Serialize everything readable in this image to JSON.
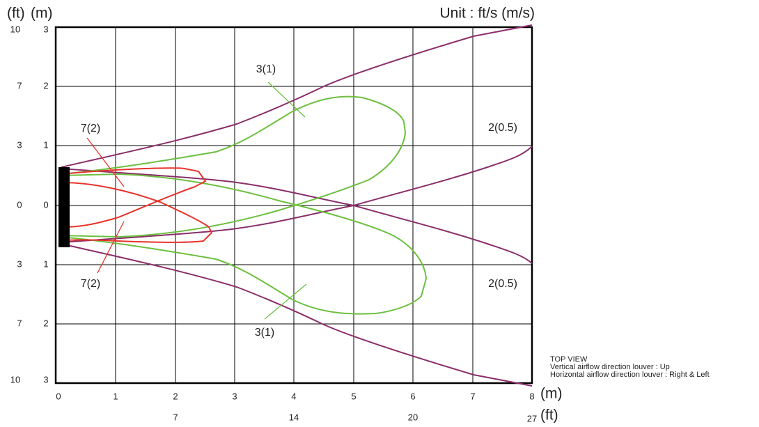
{
  "unit": "Unit : ft/s (m/s)",
  "left_axis": {
    "ft_label": "(ft)",
    "m_label": "(m)",
    "ft_ticks": [
      "10",
      "7",
      "3",
      "0",
      "3",
      "7",
      "10"
    ],
    "m_ticks": [
      "3",
      "2",
      "1",
      "0",
      "1",
      "2",
      "3"
    ]
  },
  "bottom_axis": {
    "m_label": "(m)",
    "ft_label": "(ft)",
    "m_ticks": [
      "0",
      "1",
      "2",
      "3",
      "4",
      "5",
      "6",
      "7",
      "8"
    ],
    "ft_ticks": [
      "7",
      "14",
      "20",
      "27"
    ]
  },
  "curve_labels": [
    "3(1)",
    "7(2)",
    "2(0.5)",
    "7(2)",
    "2(0.5)",
    "3(1)"
  ],
  "notes": {
    "title": "TOP VIEW",
    "vertical": "Vertical airflow direction louver : Up",
    "horizontal": "Horizontal airflow direction louver : Right & Left"
  }
}
